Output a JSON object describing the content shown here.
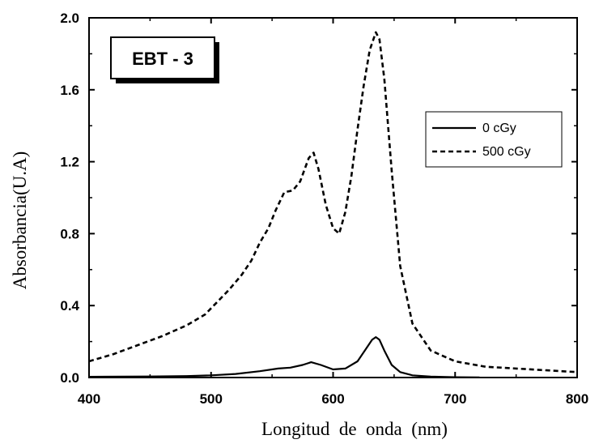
{
  "chart_data": {
    "type": "line",
    "title": "",
    "annotation": "EBT - 3",
    "xlabel": "Longitud  de  onda  (nm)",
    "ylabel": "Absorbancia(U.A)",
    "xlim": [
      400,
      800
    ],
    "ylim": [
      0,
      2.0
    ],
    "x_ticks": [
      400,
      500,
      600,
      700,
      800
    ],
    "x_tick_labels": [
      "400",
      "500",
      "600",
      "700",
      "800"
    ],
    "y_ticks": [
      0,
      0.4,
      0.8,
      1.2,
      1.6,
      2.0
    ],
    "y_tick_labels": [
      "0.0",
      "0.4",
      "0.8",
      "1.2",
      "1.6",
      "2.0"
    ],
    "grid": false,
    "legend_position": "top-right",
    "series": [
      {
        "name": "0 cGy",
        "style": "solid",
        "color": "#000000",
        "x": [
          400,
          450,
          480,
          500,
          520,
          540,
          555,
          565,
          575,
          582,
          590,
          600,
          610,
          620,
          627,
          632,
          635,
          638,
          642,
          648,
          655,
          665,
          680,
          700,
          720
        ],
        "y": [
          0.004,
          0.006,
          0.008,
          0.012,
          0.02,
          0.035,
          0.05,
          0.055,
          0.07,
          0.085,
          0.07,
          0.045,
          0.05,
          0.09,
          0.16,
          0.21,
          0.225,
          0.21,
          0.15,
          0.07,
          0.03,
          0.012,
          0.005,
          0.002,
          0.001
        ]
      },
      {
        "name": "500 cGy",
        "style": "dashed",
        "color": "#000000",
        "x": [
          400,
          420,
          440,
          460,
          480,
          495,
          505,
          515,
          525,
          533,
          540,
          547,
          553,
          560,
          567,
          573,
          580,
          584,
          588,
          594,
          600,
          605,
          610,
          615,
          620,
          625,
          630,
          635,
          638,
          642,
          648,
          655,
          665,
          680,
          700,
          725,
          750,
          775,
          800
        ],
        "y": [
          0.09,
          0.13,
          0.18,
          0.23,
          0.29,
          0.35,
          0.42,
          0.49,
          0.57,
          0.65,
          0.75,
          0.83,
          0.93,
          1.03,
          1.04,
          1.09,
          1.22,
          1.25,
          1.16,
          0.96,
          0.83,
          0.8,
          0.92,
          1.12,
          1.38,
          1.62,
          1.82,
          1.92,
          1.88,
          1.66,
          1.15,
          0.62,
          0.3,
          0.15,
          0.09,
          0.06,
          0.05,
          0.04,
          0.03
        ]
      }
    ]
  }
}
